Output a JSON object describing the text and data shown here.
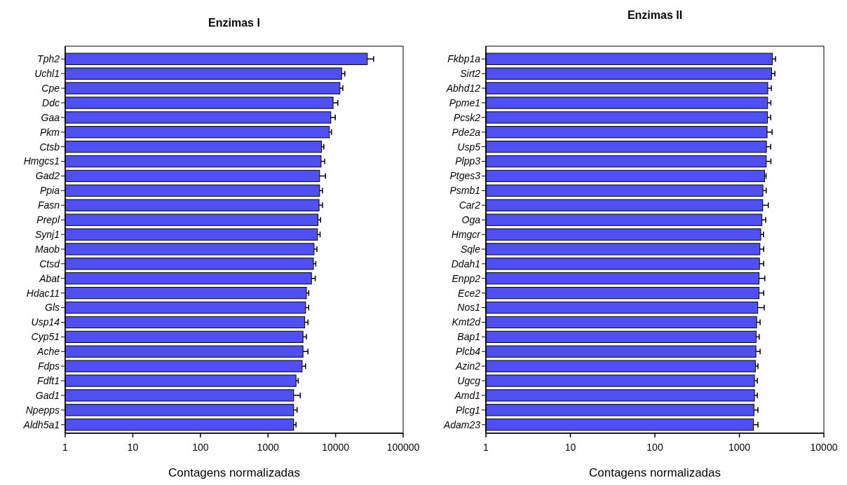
{
  "chart_data": [
    {
      "type": "bar",
      "orientation": "horizontal",
      "title": "Enzimas I",
      "xlabel": "Contagens normalizadas",
      "log": "x",
      "color": "#5050f0",
      "categories": [
        "Tph2",
        "Uchl1",
        "Cpe",
        "Ddc",
        "Gaa",
        "Pkm",
        "Ctsb",
        "Hmgcs1",
        "Gad2",
        "Ppia",
        "Fasn",
        "Prepl",
        "Synj1",
        "Maob",
        "Ctsd",
        "Abat",
        "Hdac11",
        "Gls",
        "Usp14",
        "Cyp51",
        "Ache",
        "Fdps",
        "Fdft1",
        "Gad1",
        "Npepps",
        "Aldh5a1"
      ],
      "values": [
        29500,
        12300,
        11600,
        9200,
        8500,
        8100,
        6200,
        6100,
        5800,
        5800,
        5700,
        5500,
        5400,
        4800,
        4700,
        4400,
        3700,
        3600,
        3500,
        3300,
        3300,
        3200,
        2600,
        2400,
        2400,
        2400
      ],
      "errors": [
        [
          29500,
          36500
        ],
        [
          12300,
          13700
        ],
        [
          11600,
          12800
        ],
        [
          9200,
          10800
        ],
        [
          8500,
          9900
        ],
        [
          8100,
          8700
        ],
        [
          6200,
          6700
        ],
        [
          6100,
          6900
        ],
        [
          5800,
          7100
        ],
        [
          5800,
          6400
        ],
        [
          5700,
          6400
        ],
        [
          5500,
          6000
        ],
        [
          5400,
          5900
        ],
        [
          4800,
          5300
        ],
        [
          4700,
          5100
        ],
        [
          4400,
          5000
        ],
        [
          3700,
          4000
        ],
        [
          3600,
          4000
        ],
        [
          3500,
          3900
        ],
        [
          3300,
          3700
        ],
        [
          3300,
          3900
        ],
        [
          3200,
          3600
        ],
        [
          2600,
          2800
        ],
        [
          2400,
          3000
        ],
        [
          2400,
          2700
        ],
        [
          2400,
          2600
        ]
      ],
      "xlim": [
        1,
        100000
      ],
      "xticks": [
        1,
        10,
        100,
        1000,
        10000,
        100000
      ],
      "grid": false
    },
    {
      "type": "bar",
      "orientation": "horizontal",
      "title": "Enzimas II",
      "xlabel": "Contagens normalizadas",
      "log": "x",
      "color": "#5050f0",
      "categories": [
        "Fkbp1a",
        "Sirt2",
        "Abhd12",
        "Ppme1",
        "Pcsk2",
        "Pde2a",
        "Usp5",
        "Plpp3",
        "Ptges3",
        "Psmb1",
        "Car2",
        "Oga",
        "Hmgcr",
        "Sqle",
        "Ddah1",
        "Enpp2",
        "Ece2",
        "Nos1",
        "Kmt2d",
        "Bap1",
        "Plcb4",
        "Azin2",
        "Ugcg",
        "Amd1",
        "Plcg1",
        "Adam23"
      ],
      "values": [
        2460,
        2410,
        2170,
        2160,
        2150,
        2130,
        2090,
        2080,
        1990,
        1900,
        1890,
        1850,
        1790,
        1750,
        1730,
        1710,
        1710,
        1650,
        1600,
        1580,
        1570,
        1550,
        1510,
        1510,
        1490,
        1470
      ],
      "errors": [
        [
          2460,
          2680
        ],
        [
          2410,
          2630
        ],
        [
          2170,
          2390
        ],
        [
          2160,
          2360
        ],
        [
          2150,
          2350
        ],
        [
          2130,
          2440
        ],
        [
          2090,
          2350
        ],
        [
          2080,
          2360
        ],
        [
          1990,
          2070
        ],
        [
          1900,
          2080
        ],
        [
          1890,
          2200
        ],
        [
          1850,
          2050
        ],
        [
          1790,
          1930
        ],
        [
          1750,
          1940
        ],
        [
          1730,
          1940
        ],
        [
          1710,
          2000
        ],
        [
          1710,
          1940
        ],
        [
          1650,
          1970
        ],
        [
          1600,
          1760
        ],
        [
          1580,
          1720
        ],
        [
          1570,
          1760
        ],
        [
          1550,
          1660
        ],
        [
          1510,
          1630
        ],
        [
          1510,
          1630
        ],
        [
          1490,
          1660
        ],
        [
          1470,
          1660
        ]
      ],
      "xlim": [
        1,
        10000
      ],
      "xticks": [
        1,
        10,
        100,
        1000,
        10000
      ],
      "grid": false
    }
  ]
}
